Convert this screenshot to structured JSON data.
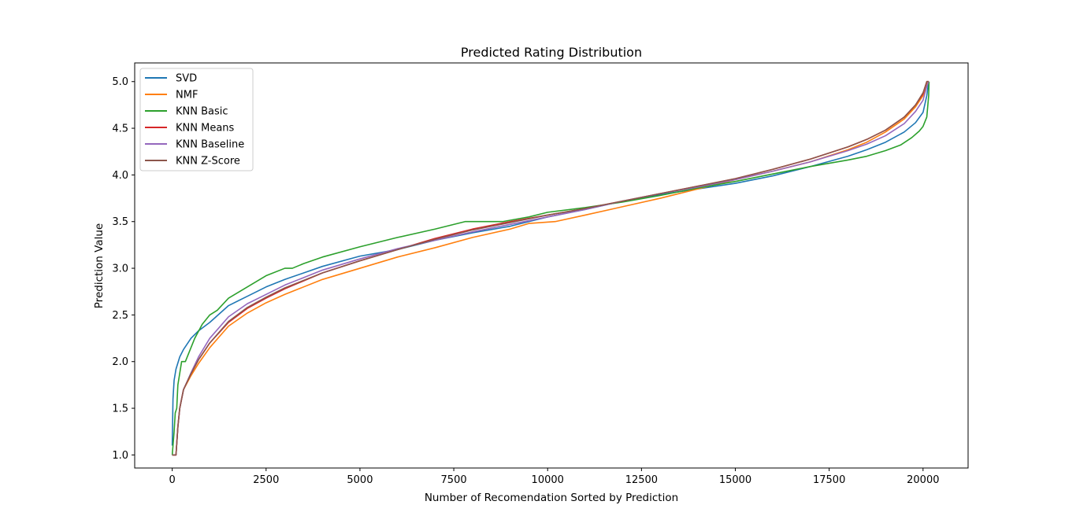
{
  "chart_data": {
    "type": "line",
    "title": "Predicted Rating Distribution",
    "xlabel": "Number of Recomendation Sorted by Prediction",
    "ylabel": "Prediction Value",
    "xlim": [
      -1000,
      21200
    ],
    "ylim": [
      0.86,
      5.2
    ],
    "xticks": [
      0,
      2500,
      5000,
      7500,
      10000,
      12500,
      15000,
      17500,
      20000
    ],
    "xtick_labels": [
      "0",
      "2500",
      "5000",
      "7500",
      "10000",
      "12500",
      "15000",
      "17500",
      "20000"
    ],
    "yticks": [
      1.0,
      1.5,
      2.0,
      2.5,
      3.0,
      3.5,
      4.0,
      4.5,
      5.0
    ],
    "ytick_labels": [
      "1.0",
      "1.5",
      "2.0",
      "2.5",
      "3.0",
      "3.5",
      "4.0",
      "4.5",
      "5.0"
    ],
    "grid": false,
    "legend_position": "upper-left",
    "series": [
      {
        "name": "SVD",
        "color": "#1f77b4",
        "points": [
          [
            0,
            1.1
          ],
          [
            20,
            1.6
          ],
          [
            50,
            1.8
          ],
          [
            100,
            1.92
          ],
          [
            200,
            2.05
          ],
          [
            300,
            2.13
          ],
          [
            500,
            2.25
          ],
          [
            700,
            2.33
          ],
          [
            1000,
            2.42
          ],
          [
            1500,
            2.6
          ],
          [
            2000,
            2.7
          ],
          [
            2500,
            2.8
          ],
          [
            3000,
            2.88
          ],
          [
            4000,
            3.02
          ],
          [
            5000,
            3.13
          ],
          [
            6000,
            3.2
          ],
          [
            7000,
            3.3
          ],
          [
            8000,
            3.38
          ],
          [
            9000,
            3.45
          ],
          [
            10000,
            3.55
          ],
          [
            11000,
            3.63
          ],
          [
            12000,
            3.72
          ],
          [
            13000,
            3.79
          ],
          [
            14000,
            3.85
          ],
          [
            15000,
            3.91
          ],
          [
            16000,
            3.99
          ],
          [
            17000,
            4.09
          ],
          [
            18000,
            4.2
          ],
          [
            18500,
            4.27
          ],
          [
            19000,
            4.35
          ],
          [
            19500,
            4.46
          ],
          [
            19800,
            4.56
          ],
          [
            20000,
            4.67
          ],
          [
            20100,
            4.85
          ],
          [
            20150,
            5.0
          ]
        ]
      },
      {
        "name": "NMF",
        "color": "#ff7f0e",
        "points": [
          [
            0,
            1.0
          ],
          [
            100,
            1.0
          ],
          [
            150,
            1.3
          ],
          [
            200,
            1.5
          ],
          [
            300,
            1.7
          ],
          [
            500,
            1.85
          ],
          [
            700,
            1.98
          ],
          [
            1000,
            2.15
          ],
          [
            1500,
            2.38
          ],
          [
            2000,
            2.52
          ],
          [
            2500,
            2.63
          ],
          [
            3000,
            2.72
          ],
          [
            4000,
            2.88
          ],
          [
            5000,
            3.0
          ],
          [
            6000,
            3.12
          ],
          [
            7000,
            3.22
          ],
          [
            8000,
            3.33
          ],
          [
            9000,
            3.42
          ],
          [
            9500,
            3.48
          ],
          [
            10200,
            3.5
          ],
          [
            11000,
            3.57
          ],
          [
            12000,
            3.66
          ],
          [
            13000,
            3.75
          ],
          [
            14000,
            3.85
          ],
          [
            15000,
            3.95
          ],
          [
            16000,
            4.04
          ],
          [
            17000,
            4.14
          ],
          [
            18000,
            4.27
          ],
          [
            18500,
            4.35
          ],
          [
            19000,
            4.46
          ],
          [
            19500,
            4.6
          ],
          [
            19800,
            4.73
          ],
          [
            20000,
            4.85
          ],
          [
            20100,
            4.97
          ],
          [
            20150,
            5.0
          ]
        ]
      },
      {
        "name": "KNN Basic",
        "color": "#2ca02c",
        "points": [
          [
            0,
            1.0
          ],
          [
            50,
            1.25
          ],
          [
            80,
            1.45
          ],
          [
            120,
            1.5
          ],
          [
            150,
            1.75
          ],
          [
            250,
            2.0
          ],
          [
            350,
            2.0
          ],
          [
            450,
            2.1
          ],
          [
            600,
            2.25
          ],
          [
            800,
            2.4
          ],
          [
            1000,
            2.5
          ],
          [
            1200,
            2.55
          ],
          [
            1500,
            2.68
          ],
          [
            2000,
            2.8
          ],
          [
            2500,
            2.92
          ],
          [
            3000,
            3.0
          ],
          [
            3200,
            3.0
          ],
          [
            3500,
            3.05
          ],
          [
            4000,
            3.12
          ],
          [
            5000,
            3.23
          ],
          [
            6000,
            3.33
          ],
          [
            7000,
            3.42
          ],
          [
            7800,
            3.5
          ],
          [
            8800,
            3.5
          ],
          [
            9500,
            3.55
          ],
          [
            10000,
            3.6
          ],
          [
            11000,
            3.65
          ],
          [
            12000,
            3.71
          ],
          [
            13000,
            3.78
          ],
          [
            14000,
            3.86
          ],
          [
            15000,
            3.93
          ],
          [
            16000,
            4.01
          ],
          [
            17000,
            4.09
          ],
          [
            18000,
            4.16
          ],
          [
            18500,
            4.2
          ],
          [
            19000,
            4.26
          ],
          [
            19400,
            4.32
          ],
          [
            19700,
            4.4
          ],
          [
            19900,
            4.47
          ],
          [
            20000,
            4.52
          ],
          [
            20100,
            4.62
          ],
          [
            20150,
            4.85
          ],
          [
            20160,
            5.0
          ]
        ]
      },
      {
        "name": "KNN Means",
        "color": "#d62728",
        "points": [
          [
            0,
            1.0
          ],
          [
            100,
            1.0
          ],
          [
            150,
            1.3
          ],
          [
            200,
            1.5
          ],
          [
            300,
            1.7
          ],
          [
            500,
            1.87
          ],
          [
            700,
            2.02
          ],
          [
            1000,
            2.2
          ],
          [
            1500,
            2.42
          ],
          [
            2000,
            2.57
          ],
          [
            2500,
            2.68
          ],
          [
            3000,
            2.78
          ],
          [
            4000,
            2.95
          ],
          [
            5000,
            3.08
          ],
          [
            6000,
            3.2
          ],
          [
            7000,
            3.32
          ],
          [
            8000,
            3.42
          ],
          [
            9000,
            3.5
          ],
          [
            10000,
            3.57
          ],
          [
            11000,
            3.64
          ],
          [
            12000,
            3.72
          ],
          [
            13000,
            3.8
          ],
          [
            14000,
            3.88
          ],
          [
            15000,
            3.96
          ],
          [
            16000,
            4.06
          ],
          [
            17000,
            4.17
          ],
          [
            18000,
            4.3
          ],
          [
            18500,
            4.38
          ],
          [
            19000,
            4.48
          ],
          [
            19500,
            4.62
          ],
          [
            19800,
            4.75
          ],
          [
            20000,
            4.87
          ],
          [
            20100,
            5.0
          ],
          [
            20150,
            5.0
          ]
        ]
      },
      {
        "name": "KNN Baseline",
        "color": "#9467bd",
        "points": [
          [
            0,
            1.0
          ],
          [
            100,
            1.0
          ],
          [
            150,
            1.3
          ],
          [
            200,
            1.5
          ],
          [
            300,
            1.7
          ],
          [
            500,
            1.88
          ],
          [
            700,
            2.05
          ],
          [
            1000,
            2.25
          ],
          [
            1500,
            2.48
          ],
          [
            2000,
            2.62
          ],
          [
            2500,
            2.72
          ],
          [
            3000,
            2.82
          ],
          [
            4000,
            2.98
          ],
          [
            5000,
            3.1
          ],
          [
            6000,
            3.21
          ],
          [
            7000,
            3.3
          ],
          [
            8000,
            3.39
          ],
          [
            9000,
            3.47
          ],
          [
            10000,
            3.55
          ],
          [
            11000,
            3.63
          ],
          [
            12000,
            3.72
          ],
          [
            13000,
            3.8
          ],
          [
            14000,
            3.87
          ],
          [
            15000,
            3.95
          ],
          [
            16000,
            4.04
          ],
          [
            17000,
            4.14
          ],
          [
            18000,
            4.26
          ],
          [
            18500,
            4.33
          ],
          [
            19000,
            4.42
          ],
          [
            19500,
            4.55
          ],
          [
            19800,
            4.68
          ],
          [
            20000,
            4.8
          ],
          [
            20100,
            4.95
          ],
          [
            20150,
            5.0
          ]
        ]
      },
      {
        "name": "KNN Z-Score",
        "color": "#8c564b",
        "points": [
          [
            0,
            1.0
          ],
          [
            100,
            1.0
          ],
          [
            150,
            1.3
          ],
          [
            200,
            1.5
          ],
          [
            300,
            1.7
          ],
          [
            500,
            1.87
          ],
          [
            700,
            2.02
          ],
          [
            1000,
            2.2
          ],
          [
            1500,
            2.43
          ],
          [
            2000,
            2.58
          ],
          [
            2500,
            2.69
          ],
          [
            3000,
            2.79
          ],
          [
            4000,
            2.95
          ],
          [
            5000,
            3.08
          ],
          [
            6000,
            3.2
          ],
          [
            7000,
            3.31
          ],
          [
            8000,
            3.41
          ],
          [
            9000,
            3.49
          ],
          [
            10000,
            3.57
          ],
          [
            11000,
            3.64
          ],
          [
            12000,
            3.72
          ],
          [
            13000,
            3.8
          ],
          [
            14000,
            3.88
          ],
          [
            15000,
            3.96
          ],
          [
            16000,
            4.06
          ],
          [
            17000,
            4.17
          ],
          [
            18000,
            4.3
          ],
          [
            18500,
            4.38
          ],
          [
            19000,
            4.48
          ],
          [
            19500,
            4.62
          ],
          [
            19800,
            4.75
          ],
          [
            20000,
            4.88
          ],
          [
            20100,
            5.0
          ],
          [
            20150,
            5.0
          ]
        ]
      }
    ]
  }
}
